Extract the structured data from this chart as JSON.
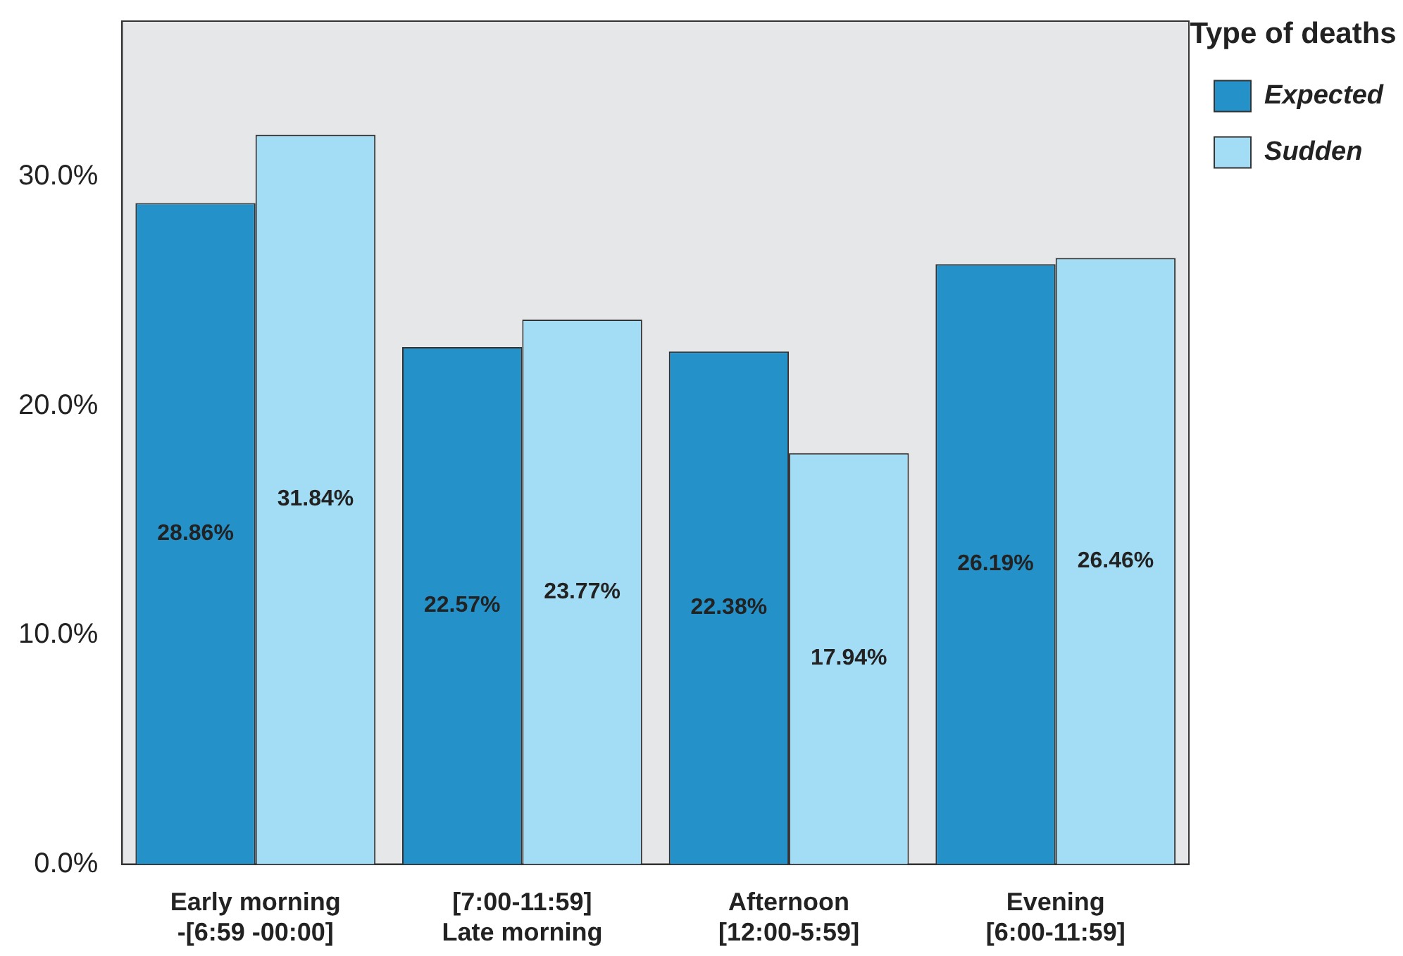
{
  "chart_data": {
    "type": "bar",
    "legend_title": "Type of deaths",
    "legend": "top right",
    "grid": false,
    "categories": [
      "Early morning\n-[6:59 -00:00]",
      "[7:00-11:59]\nLate morning",
      "Afternoon\n[12:00-5:59]",
      "Evening\n[6:00-11:59]"
    ],
    "series": [
      {
        "name": "Expected",
        "color": "#2591c9",
        "values": [
          28.86,
          22.57,
          22.38,
          26.19
        ],
        "value_labels": [
          "28.86%",
          "22.57%",
          "22.38%",
          "26.19%"
        ]
      },
      {
        "name": "Sudden",
        "color": "#a3dcf5",
        "values": [
          31.84,
          23.77,
          17.94,
          26.46
        ],
        "value_labels": [
          "31.84%",
          "23.77%",
          "17.94%",
          "26.46%"
        ]
      }
    ],
    "ylim": [
      0,
      36.8
    ],
    "yticks": [
      {
        "value": 0,
        "label": "0.0%"
      },
      {
        "value": 10,
        "label": "10.0%"
      },
      {
        "value": 20,
        "label": "20.0%"
      },
      {
        "value": 30,
        "label": "30.0%"
      }
    ]
  }
}
